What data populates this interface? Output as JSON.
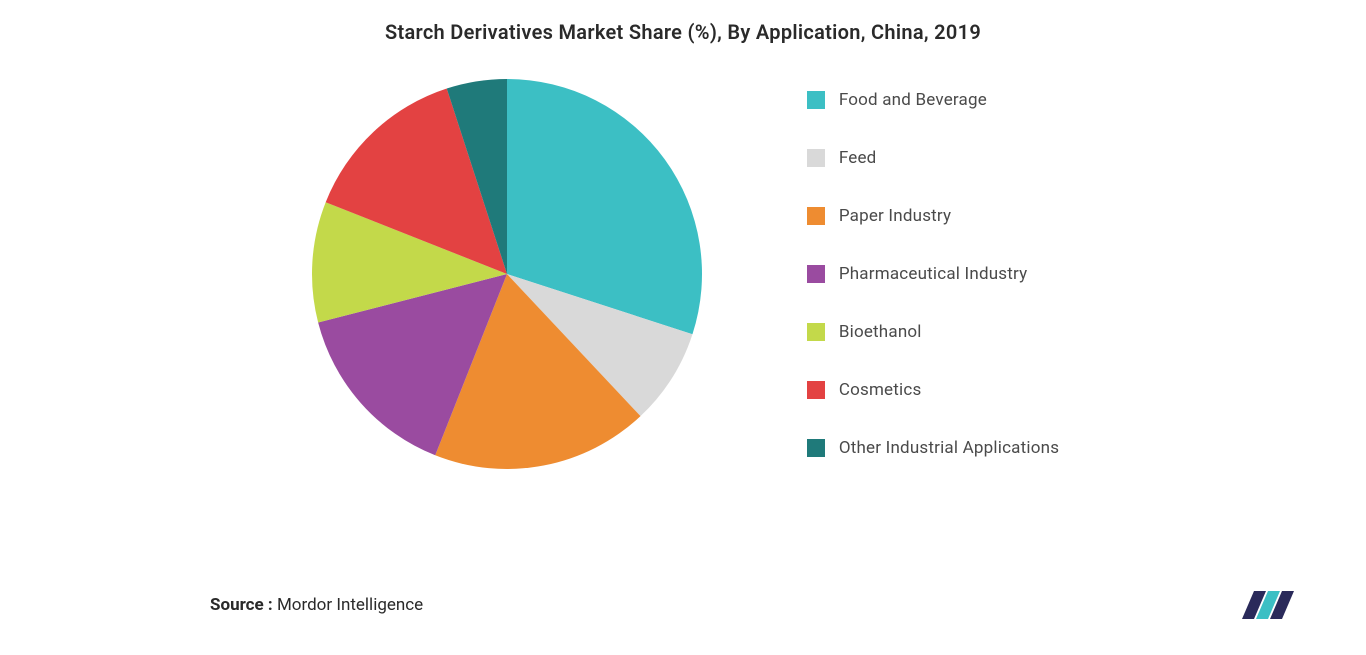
{
  "chart": {
    "type": "pie",
    "title": "Starch Derivatives Market Share (%), By Application, China, 2019",
    "title_fontsize": 20,
    "title_color": "#2a2a2a",
    "background_color": "#ffffff",
    "start_angle_deg": -90,
    "radius": 195,
    "slices": [
      {
        "label": "Food and Beverage",
        "value": 30,
        "color": "#3cbfc4"
      },
      {
        "label": "Feed",
        "value": 8,
        "color": "#d9d9d9"
      },
      {
        "label": "Paper Industry",
        "value": 18,
        "color": "#ee8c31"
      },
      {
        "label": "Pharmaceutical Industry",
        "value": 15,
        "color": "#9a4ba0"
      },
      {
        "label": "Bioethanol",
        "value": 10,
        "color": "#c3d94a"
      },
      {
        "label": "Cosmetics",
        "value": 14,
        "color": "#e34242"
      },
      {
        "label": "Other Industrial Applications",
        "value": 5,
        "color": "#1f7a7a"
      }
    ],
    "legend": {
      "swatch_size": 18,
      "gap": 38,
      "label_fontsize": 17,
      "label_color": "#4a4a4a"
    }
  },
  "source": {
    "label": "Source :",
    "value": " Mordor Intelligence"
  },
  "logo": {
    "bars": [
      {
        "color": "#2a2a5a"
      },
      {
        "color": "#3cbfc4"
      },
      {
        "color": "#2a2a5a"
      }
    ]
  }
}
